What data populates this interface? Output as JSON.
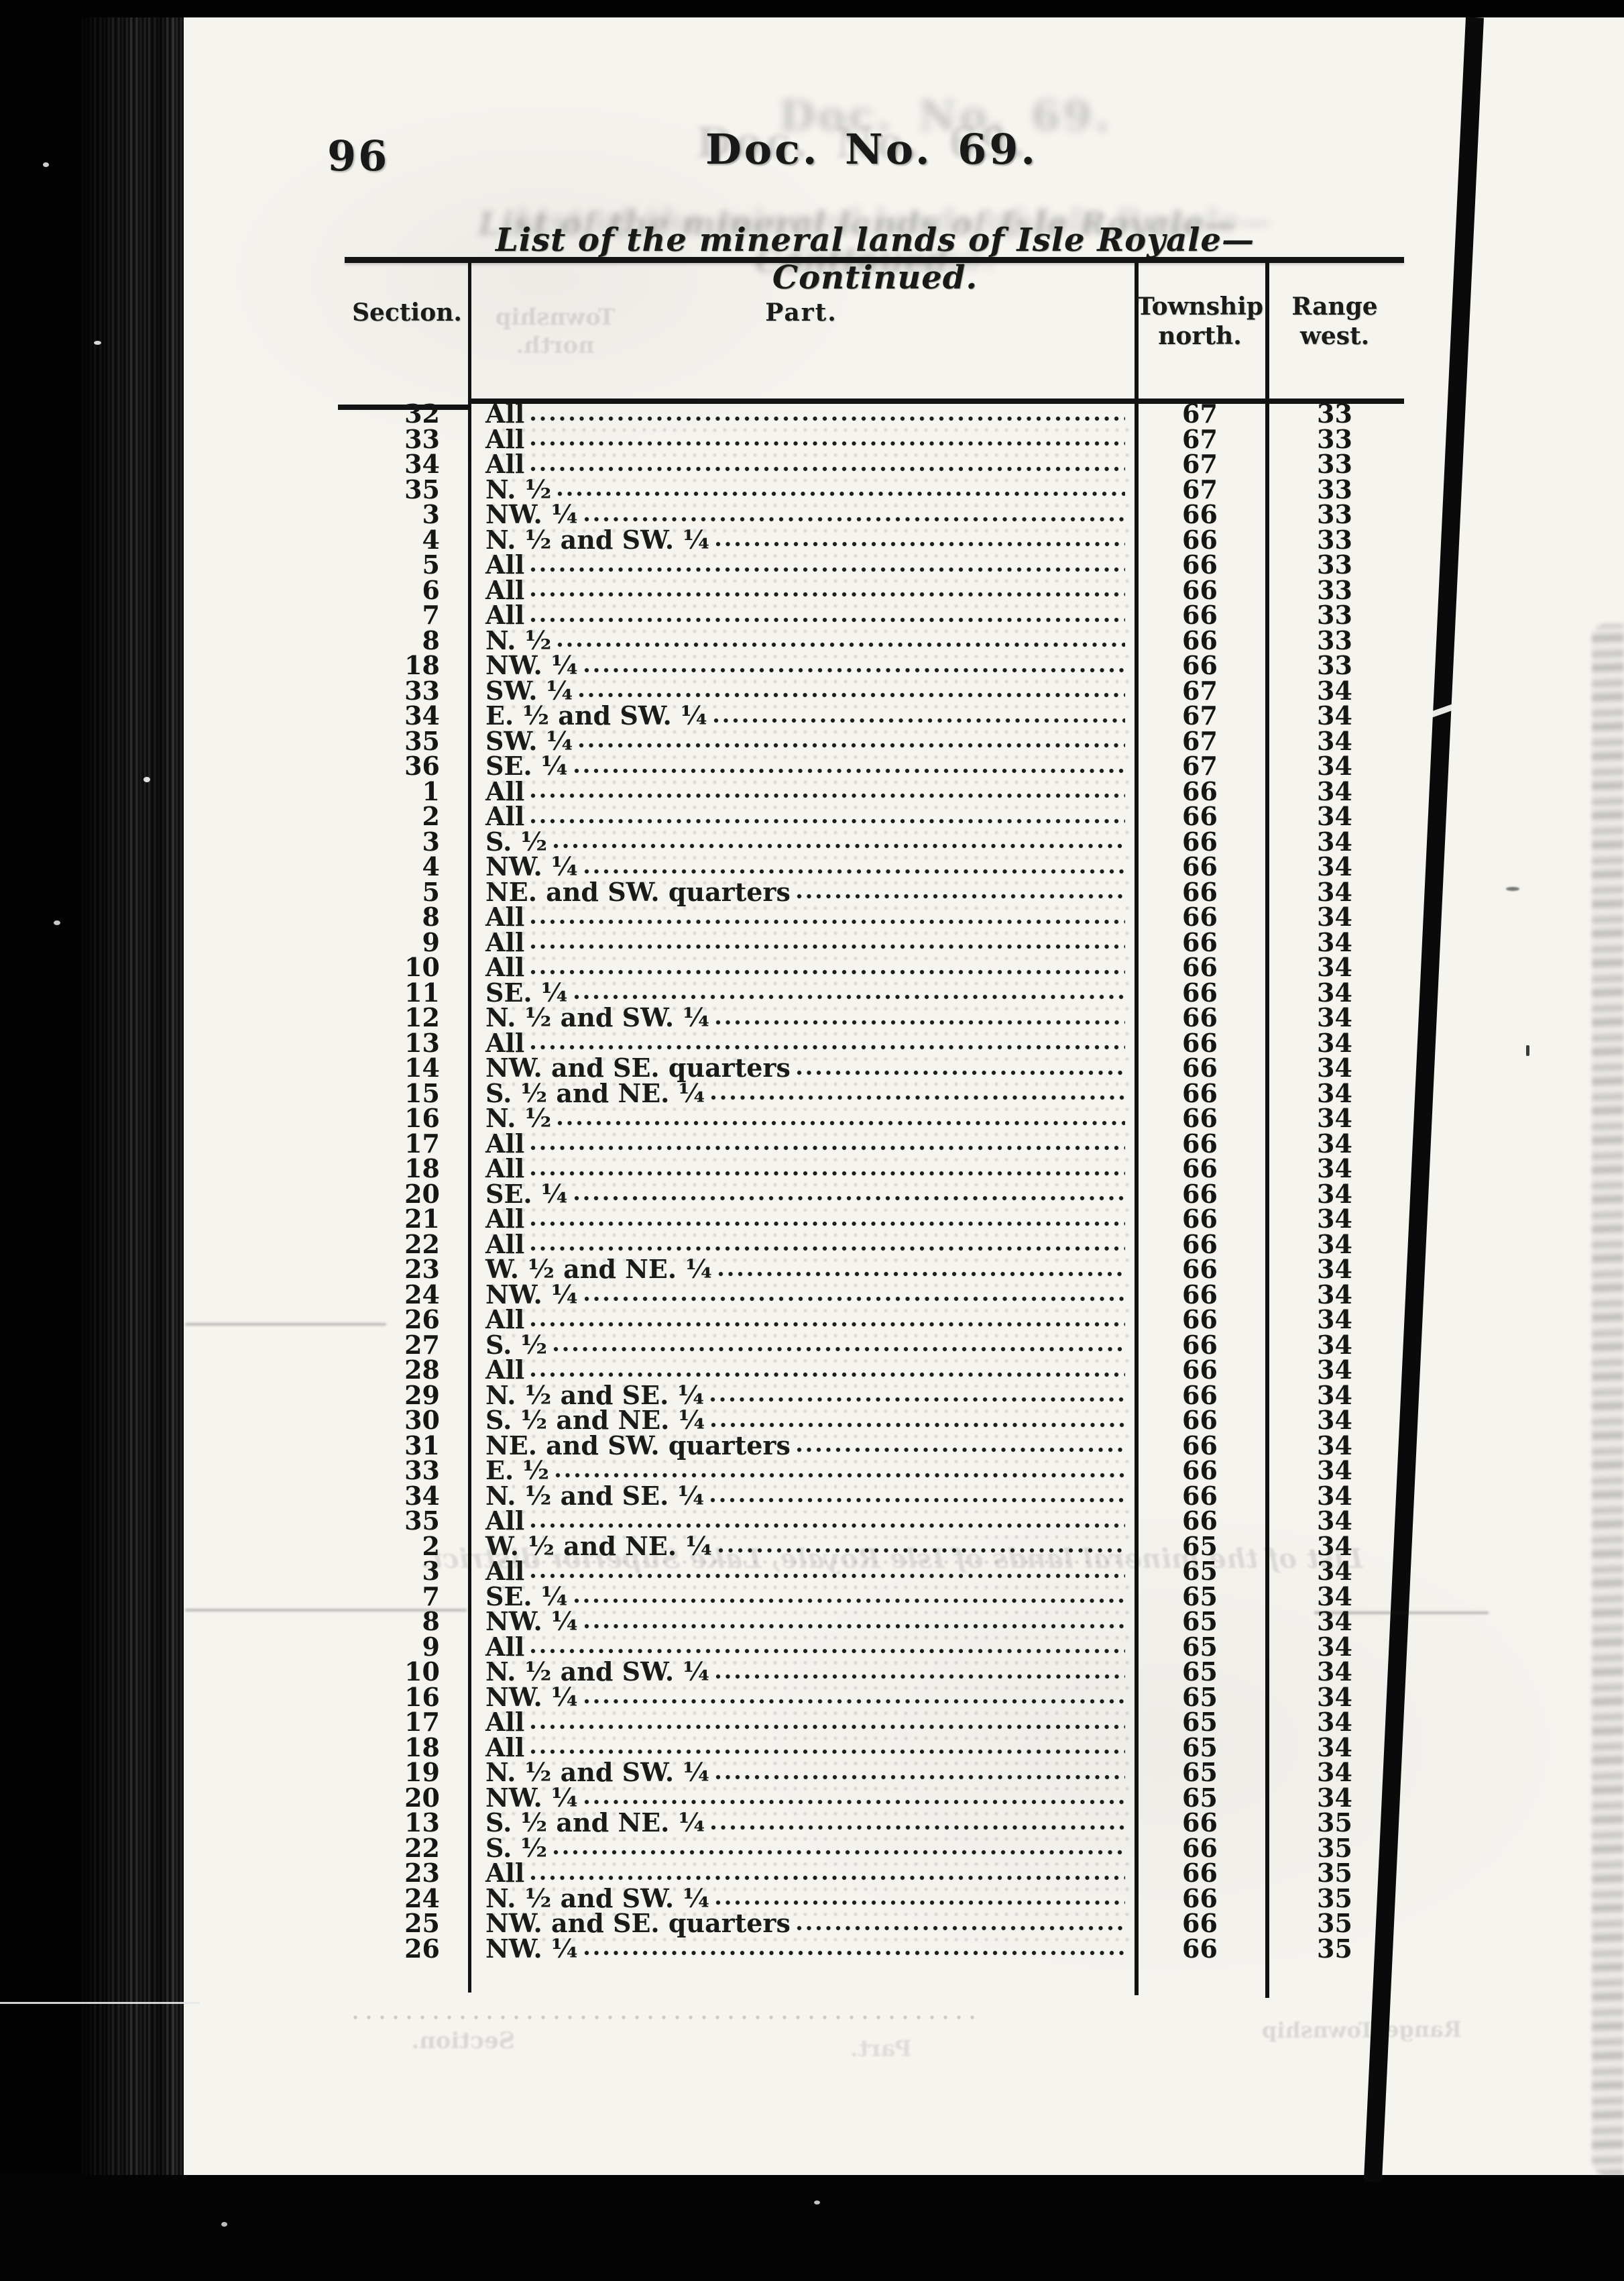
{
  "page": {
    "number": "96",
    "title": "Doc. No. 69.",
    "subtitle": "List of the mineral lands of Isle Royale—Continued."
  },
  "table": {
    "headers": {
      "section": "Section.",
      "part": "Part.",
      "township_line1": "Township",
      "township_line2": "north.",
      "range_line1": "Range",
      "range_line2": "west."
    },
    "rows": [
      {
        "section": "32",
        "part": "All",
        "township": "67",
        "range": "33"
      },
      {
        "section": "33",
        "part": "All",
        "township": "67",
        "range": "33"
      },
      {
        "section": "34",
        "part": "All",
        "township": "67",
        "range": "33"
      },
      {
        "section": "35",
        "part": "N. ½",
        "township": "67",
        "range": "33"
      },
      {
        "section": "3",
        "part": "NW. ¼",
        "township": "66",
        "range": "33"
      },
      {
        "section": "4",
        "part": "N. ½ and SW. ¼",
        "township": "66",
        "range": "33"
      },
      {
        "section": "5",
        "part": "All",
        "township": "66",
        "range": "33"
      },
      {
        "section": "6",
        "part": "All",
        "township": "66",
        "range": "33"
      },
      {
        "section": "7",
        "part": "All",
        "township": "66",
        "range": "33"
      },
      {
        "section": "8",
        "part": "N. ½",
        "township": "66",
        "range": "33"
      },
      {
        "section": "18",
        "part": "NW. ¼",
        "township": "66",
        "range": "33"
      },
      {
        "section": "33",
        "part": "SW. ¼",
        "township": "67",
        "range": "34"
      },
      {
        "section": "34",
        "part": "E. ½ and SW. ¼",
        "township": "67",
        "range": "34"
      },
      {
        "section": "35",
        "part": "SW. ¼",
        "township": "67",
        "range": "34"
      },
      {
        "section": "36",
        "part": "SE. ¼",
        "township": "67",
        "range": "34"
      },
      {
        "section": "1",
        "part": "All",
        "township": "66",
        "range": "34"
      },
      {
        "section": "2",
        "part": "All",
        "township": "66",
        "range": "34"
      },
      {
        "section": "3",
        "part": "S. ½",
        "township": "66",
        "range": "34"
      },
      {
        "section": "4",
        "part": "NW. ¼",
        "township": "66",
        "range": "34"
      },
      {
        "section": "5",
        "part": "NE. and SW. quarters",
        "township": "66",
        "range": "34"
      },
      {
        "section": "8",
        "part": "All",
        "township": "66",
        "range": "34"
      },
      {
        "section": "9",
        "part": "All",
        "township": "66",
        "range": "34"
      },
      {
        "section": "10",
        "part": "All",
        "township": "66",
        "range": "34"
      },
      {
        "section": "11",
        "part": "SE. ¼",
        "township": "66",
        "range": "34"
      },
      {
        "section": "12",
        "part": "N. ½ and SW. ¼",
        "township": "66",
        "range": "34"
      },
      {
        "section": "13",
        "part": "All",
        "township": "66",
        "range": "34"
      },
      {
        "section": "14",
        "part": "NW. and SE. quarters",
        "township": "66",
        "range": "34"
      },
      {
        "section": "15",
        "part": "S. ½ and NE. ¼",
        "township": "66",
        "range": "34"
      },
      {
        "section": "16",
        "part": "N. ½",
        "township": "66",
        "range": "34"
      },
      {
        "section": "17",
        "part": "All",
        "township": "66",
        "range": "34"
      },
      {
        "section": "18",
        "part": "All",
        "township": "66",
        "range": "34"
      },
      {
        "section": "20",
        "part": "SE. ¼",
        "township": "66",
        "range": "34"
      },
      {
        "section": "21",
        "part": "All",
        "township": "66",
        "range": "34"
      },
      {
        "section": "22",
        "part": "All",
        "township": "66",
        "range": "34"
      },
      {
        "section": "23",
        "part": "W. ½ and NE. ¼",
        "township": "66",
        "range": "34"
      },
      {
        "section": "24",
        "part": "NW. ¼",
        "township": "66",
        "range": "34"
      },
      {
        "section": "26",
        "part": "All",
        "township": "66",
        "range": "34"
      },
      {
        "section": "27",
        "part": "S. ½",
        "township": "66",
        "range": "34"
      },
      {
        "section": "28",
        "part": "All",
        "township": "66",
        "range": "34"
      },
      {
        "section": "29",
        "part": "N. ½ and SE. ¼",
        "township": "66",
        "range": "34"
      },
      {
        "section": "30",
        "part": "S. ½ and NE. ¼",
        "township": "66",
        "range": "34"
      },
      {
        "section": "31",
        "part": "NE. and SW. quarters",
        "township": "66",
        "range": "34"
      },
      {
        "section": "33",
        "part": "E. ½",
        "township": "66",
        "range": "34"
      },
      {
        "section": "34",
        "part": "N. ½ and SE. ¼",
        "township": "66",
        "range": "34"
      },
      {
        "section": "35",
        "part": "All",
        "township": "66",
        "range": "34"
      },
      {
        "section": "2",
        "part": "W. ½ and NE. ¼",
        "township": "65",
        "range": "34"
      },
      {
        "section": "3",
        "part": "All",
        "township": "65",
        "range": "34"
      },
      {
        "section": "7",
        "part": "SE. ¼",
        "township": "65",
        "range": "34"
      },
      {
        "section": "8",
        "part": "NW. ¼",
        "township": "65",
        "range": "34"
      },
      {
        "section": "9",
        "part": "All",
        "township": "65",
        "range": "34"
      },
      {
        "section": "10",
        "part": "N. ½ and SW. ¼",
        "township": "65",
        "range": "34"
      },
      {
        "section": "16",
        "part": "NW. ¼",
        "township": "65",
        "range": "34"
      },
      {
        "section": "17",
        "part": "All",
        "township": "65",
        "range": "34"
      },
      {
        "section": "18",
        "part": "All",
        "township": "65",
        "range": "34"
      },
      {
        "section": "19",
        "part": "N. ½ and SW. ¼",
        "township": "65",
        "range": "34"
      },
      {
        "section": "20",
        "part": "NW. ¼",
        "township": "65",
        "range": "34"
      },
      {
        "section": "13",
        "part": "S. ½ and NE. ¼",
        "township": "66",
        "range": "35"
      },
      {
        "section": "22",
        "part": "S. ½",
        "township": "66",
        "range": "35"
      },
      {
        "section": "23",
        "part": "All",
        "township": "66",
        "range": "35"
      },
      {
        "section": "24",
        "part": "N. ½ and SW. ¼",
        "township": "66",
        "range": "35"
      },
      {
        "section": "25",
        "part": "NW. and SE. quarters",
        "township": "66",
        "range": "35"
      },
      {
        "section": "26",
        "part": "NW. ¼",
        "township": "66",
        "range": "35"
      }
    ]
  },
  "artifacts": {
    "ghost_mid_line": "List of the mineral lands of Isle Royale, Lake Superior district.",
    "ghost_header_township": "Township",
    "ghost_header_north": "north.",
    "ghost_bottom_section": "Section.",
    "ghost_bottom_part": "Part.",
    "ghost_bottom_township": "Township",
    "ghost_bottom_range": "Range"
  },
  "colors": {
    "paper": "#f6f4ef",
    "ink": "#191919",
    "film": "#030303"
  }
}
